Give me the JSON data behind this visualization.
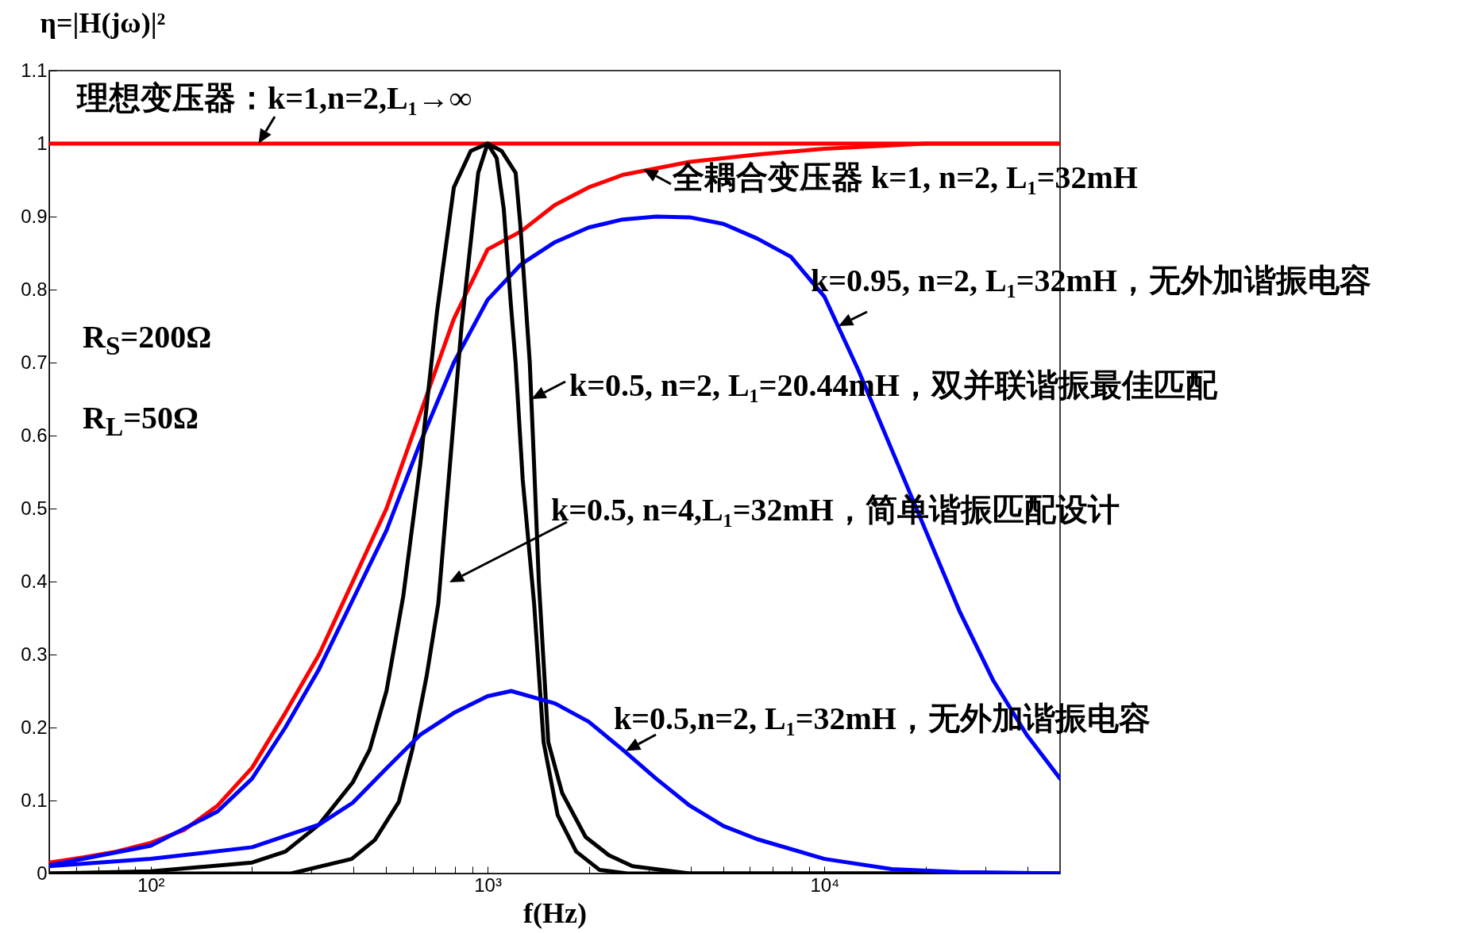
{
  "chart_data": {
    "type": "line",
    "xlabel": "f(Hz)",
    "ylabel": "η=|H(jω)|²",
    "log": "x",
    "xlim": [
      50,
      50000
    ],
    "xticks": [
      {
        "value": 60,
        "label": null
      },
      {
        "value": 70,
        "label": null
      },
      {
        "value": 80,
        "label": null
      },
      {
        "value": 90,
        "label": null
      },
      {
        "value": 100,
        "label": "10²"
      },
      {
        "value": 200,
        "label": null
      },
      {
        "value": 300,
        "label": null
      },
      {
        "value": 400,
        "label": null
      },
      {
        "value": 500,
        "label": null
      },
      {
        "value": 600,
        "label": null
      },
      {
        "value": 700,
        "label": null
      },
      {
        "value": 800,
        "label": null
      },
      {
        "value": 900,
        "label": null
      },
      {
        "value": 1000,
        "label": "10³"
      },
      {
        "value": 2000,
        "label": null
      },
      {
        "value": 3000,
        "label": null
      },
      {
        "value": 4000,
        "label": null
      },
      {
        "value": 5000,
        "label": null
      },
      {
        "value": 6000,
        "label": null
      },
      {
        "value": 7000,
        "label": null
      },
      {
        "value": 8000,
        "label": null
      },
      {
        "value": 9000,
        "label": null
      },
      {
        "value": 10000,
        "label": "10⁴"
      },
      {
        "value": 20000,
        "label": null
      },
      {
        "value": 30000,
        "label": null
      },
      {
        "value": 40000,
        "label": null
      }
    ],
    "ylim": [
      0,
      1.1
    ],
    "yticks": [
      0,
      0.1,
      0.2,
      0.3,
      0.4,
      0.5,
      0.6,
      0.7,
      0.8,
      0.9,
      1,
      1.1
    ],
    "series": [
      {
        "color": "#ff0000",
        "x": [
          50,
          50000
        ],
        "values": [
          1,
          1
        ]
      },
      {
        "color": "#ff0000",
        "x": [
          50,
          63,
          79,
          100,
          126,
          158,
          200,
          251,
          316,
          398,
          501,
          631,
          794,
          1000,
          1259,
          1585,
          1995,
          2512,
          3981,
          6310,
          10000,
          19953,
          50000
        ],
        "values": [
          0.015,
          0.022,
          0.03,
          0.042,
          0.06,
          0.093,
          0.145,
          0.22,
          0.3,
          0.4,
          0.5,
          0.63,
          0.76,
          0.855,
          0.88,
          0.916,
          0.94,
          0.957,
          0.975,
          0.985,
          0.993,
          1,
          1
        ]
      },
      {
        "color": "#0000ff",
        "x": [
          50,
          100,
          158,
          200,
          251,
          316,
          398,
          501,
          631,
          794,
          1000,
          1259,
          1585,
          1995,
          2512,
          3162,
          3981,
          5012,
          6310,
          7943,
          10000,
          12589,
          15849,
          19953,
          25119,
          31623,
          39811,
          50000
        ],
        "values": [
          0.011,
          0.038,
          0.085,
          0.13,
          0.2,
          0.28,
          0.375,
          0.47,
          0.59,
          0.7,
          0.786,
          0.835,
          0.865,
          0.885,
          0.896,
          0.9,
          0.899,
          0.89,
          0.87,
          0.845,
          0.79,
          0.69,
          0.58,
          0.47,
          0.36,
          0.265,
          0.19,
          0.13
        ]
      },
      {
        "color": "#000000",
        "x": [
          50,
          100,
          200,
          251,
          316,
          398,
          447,
          501,
          562,
          631,
          708,
          794,
          891,
          1000,
          1100,
          1211,
          1250,
          1334,
          1374,
          1419,
          1514,
          1665,
          1954,
          2291,
          2691,
          3981,
          50000
        ],
        "values": [
          0,
          0.003,
          0.015,
          0.03,
          0.067,
          0.125,
          0.17,
          0.25,
          0.38,
          0.56,
          0.77,
          0.94,
          0.99,
          1,
          0.99,
          0.96,
          0.89,
          0.7,
          0.56,
          0.4,
          0.18,
          0.11,
          0.05,
          0.025,
          0.01,
          0,
          0
        ]
      },
      {
        "color": "#000000",
        "x": [
          50,
          261,
          395,
          463,
          545,
          598,
          659,
          714,
          773,
          837,
          879,
          938,
          1000,
          1064,
          1117,
          1172,
          1211,
          1271,
          1374,
          1466,
          1614,
          1832,
          2148,
          2600,
          50000
        ],
        "values": [
          0,
          0,
          0.02,
          0.046,
          0.098,
          0.17,
          0.27,
          0.37,
          0.56,
          0.75,
          0.84,
          0.96,
          1,
          0.98,
          0.91,
          0.78,
          0.7,
          0.54,
          0.37,
          0.18,
          0.08,
          0.03,
          0.005,
          0,
          0
        ]
      },
      {
        "color": "#0000ff",
        "x": [
          50,
          100,
          200,
          316,
          398,
          501,
          631,
          794,
          1000,
          1175,
          1585,
          1995,
          2512,
          3162,
          3981,
          5012,
          6310,
          10000,
          15849,
          25119,
          50000
        ],
        "values": [
          0.01,
          0.02,
          0.036,
          0.067,
          0.097,
          0.144,
          0.19,
          0.22,
          0.243,
          0.25,
          0.233,
          0.208,
          0.17,
          0.13,
          0.093,
          0.065,
          0.047,
          0.02,
          0.006,
          0.002,
          0
        ]
      }
    ],
    "annotations": [
      {
        "text": "理想变压器：k=1,n=2,L₁→∞",
        "x": 209,
        "y": 1
      },
      {
        "text": "全耦合变压器 k=1, n=2, L₁=32mH",
        "x": 2900,
        "y": 0.965
      },
      {
        "text": "k=0.95, n=2, L₁=32mH，无外加谐振电容",
        "x": 11000,
        "y": 0.75
      },
      {
        "text": "k=0.5, n=2, L₁=20.44mH，双并联谐振最佳匹配",
        "x": 1350,
        "y": 0.65
      },
      "k=0.5, n=4,L₁=32mH，简单谐振匹配设计",
      {
        "text": "k=0.5,n=2, L₁=32mH，无外加谐振电容",
        "x": 2570,
        "y": 0.168
      },
      "R$_{S}$=200Ω",
      "R$_{L}$=50Ω"
    ]
  }
}
